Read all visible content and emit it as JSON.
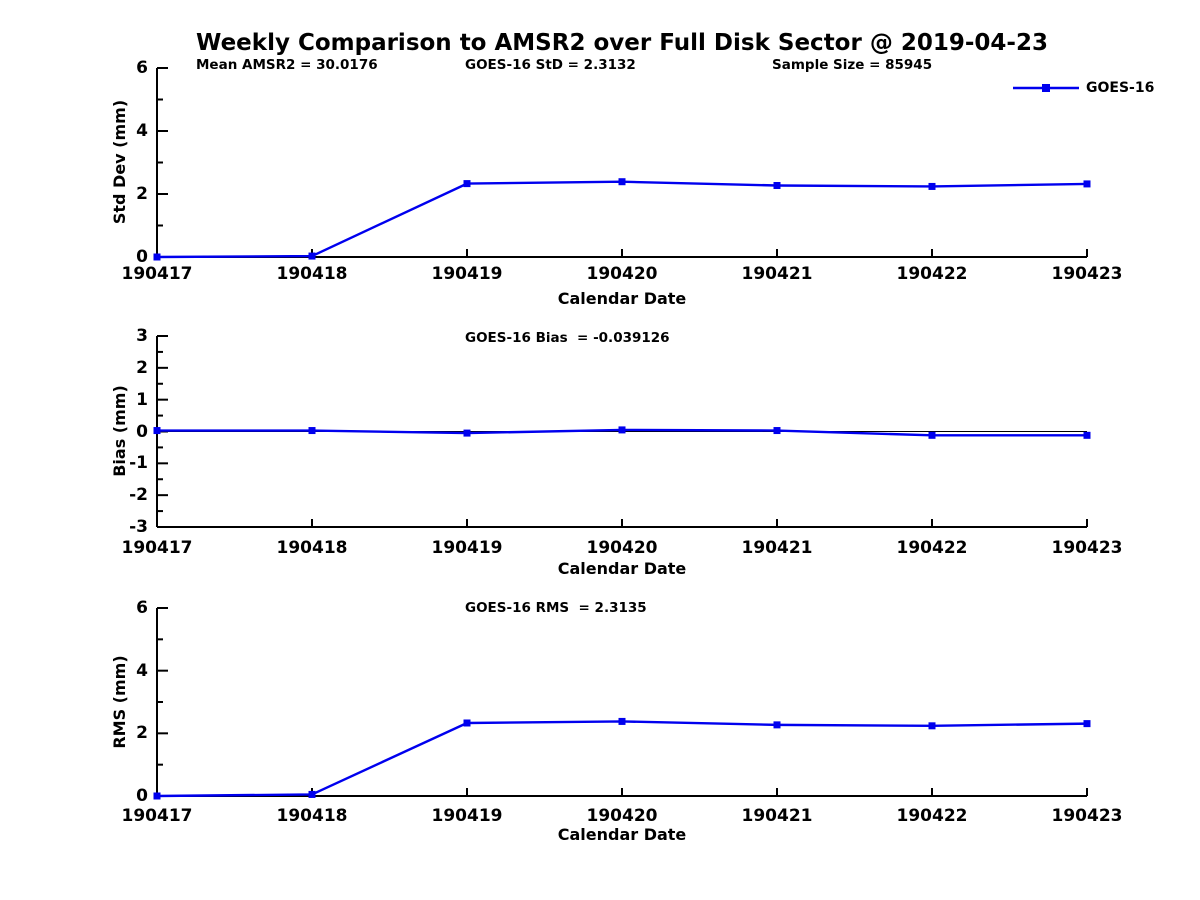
{
  "page": {
    "title": "Weekly Comparison to AMSR2 over Full Disk Sector @ 2019-04-23"
  },
  "legend": {
    "label": "GOES-16",
    "color": "#0000EE",
    "position": "upper right"
  },
  "chart_data": [
    {
      "type": "line",
      "name": "std-dev-panel",
      "title": "Weekly Comparison to AMSR2 over Full Disk Sector @ 2019-04-23",
      "xlabel": "Calendar Date",
      "ylabel": "Std Dev (mm)",
      "ylim": [
        0,
        6
      ],
      "yticks": [
        0,
        2,
        4,
        6
      ],
      "categories": [
        "190417",
        "190418",
        "190419",
        "190420",
        "190421",
        "190422",
        "190423"
      ],
      "series": [
        {
          "name": "GOES-16",
          "color": "#0000EE",
          "marker": "square",
          "values": [
            0.0,
            0.03,
            2.33,
            2.39,
            2.27,
            2.24,
            2.32
          ]
        }
      ],
      "annotations": [
        "Mean AMSR2 = 30.0176",
        "GOES-16 StD = 2.3132",
        "Sample Size = 85945"
      ],
      "grid": false,
      "legend_position": "upper right"
    },
    {
      "type": "line",
      "name": "bias-panel",
      "xlabel": "Calendar Date",
      "ylabel": "Bias (mm)",
      "ylim": [
        -3,
        3
      ],
      "yticks": [
        -3,
        -2,
        -1,
        0,
        1,
        2,
        3
      ],
      "categories": [
        "190417",
        "190418",
        "190419",
        "190420",
        "190421",
        "190422",
        "190423"
      ],
      "series": [
        {
          "name": "GOES-16",
          "color": "#0000EE",
          "marker": "square",
          "values": [
            0.03,
            0.03,
            -0.05,
            0.05,
            0.03,
            -0.12,
            -0.12
          ]
        }
      ],
      "annotations": [
        "GOES-16 Bias  = -0.039126"
      ],
      "zero_line": true,
      "grid": false
    },
    {
      "type": "line",
      "name": "rms-panel",
      "xlabel": "Calendar Date",
      "ylabel": "RMS (mm)",
      "ylim": [
        0,
        6
      ],
      "yticks": [
        0,
        2,
        4,
        6
      ],
      "categories": [
        "190417",
        "190418",
        "190419",
        "190420",
        "190421",
        "190422",
        "190423"
      ],
      "series": [
        {
          "name": "GOES-16",
          "color": "#0000EE",
          "marker": "square",
          "values": [
            0.0,
            0.05,
            2.33,
            2.38,
            2.27,
            2.24,
            2.31
          ]
        }
      ],
      "annotations": [
        "GOES-16 RMS  = 2.3135"
      ],
      "grid": false
    }
  ]
}
